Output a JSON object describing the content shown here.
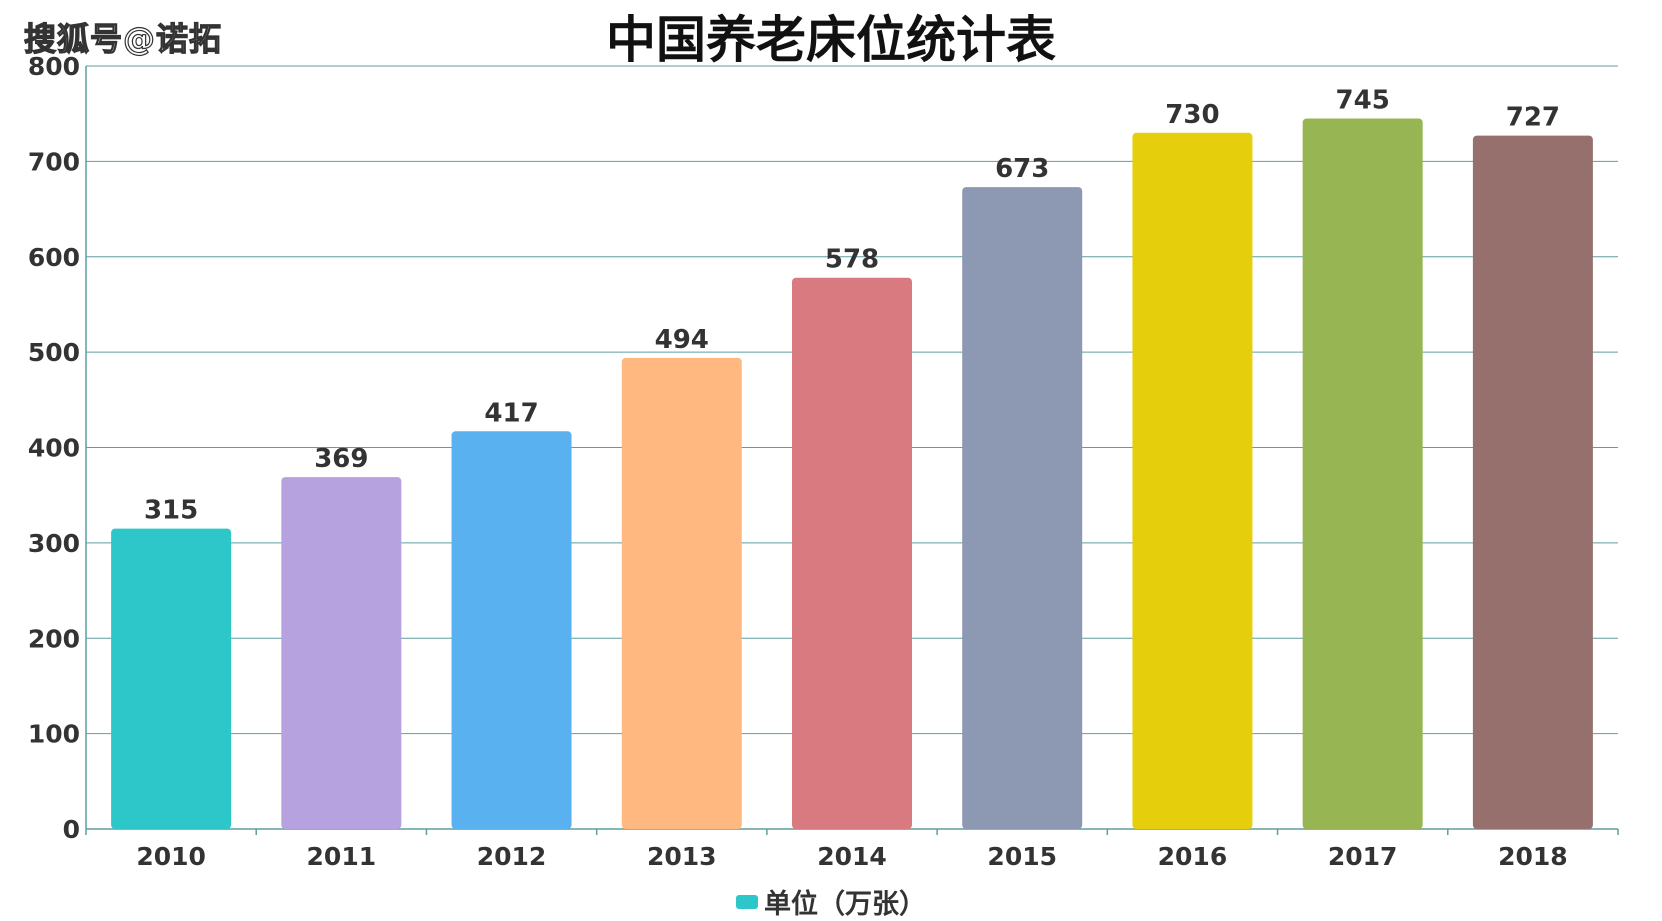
{
  "watermark": "搜狐号@诺拓",
  "colors": {
    "bars": [
      "#2ec7c9",
      "#b6a2de",
      "#5ab1ef",
      "#ffb980",
      "#d87a80",
      "#8d98b3",
      "#e5cf0d",
      "#97b552",
      "#95706d"
    ],
    "grid": "#5f9ea0",
    "axis": "#5f9ea0",
    "text": "#333333"
  },
  "chart_data": {
    "type": "bar",
    "title": "中国养老床位统计表",
    "categories": [
      "2010",
      "2011",
      "2012",
      "2013",
      "2014",
      "2015",
      "2016",
      "2017",
      "2018"
    ],
    "series": [
      {
        "name": "单位（万张）",
        "values": [
          315,
          369,
          417,
          494,
          578,
          673,
          730,
          745,
          727
        ]
      }
    ],
    "ylim": [
      0,
      800
    ],
    "yticks": [
      0,
      100,
      200,
      300,
      400,
      500,
      600,
      700,
      800
    ],
    "grid": true,
    "data_labels": true,
    "legend": "bottom-center"
  }
}
